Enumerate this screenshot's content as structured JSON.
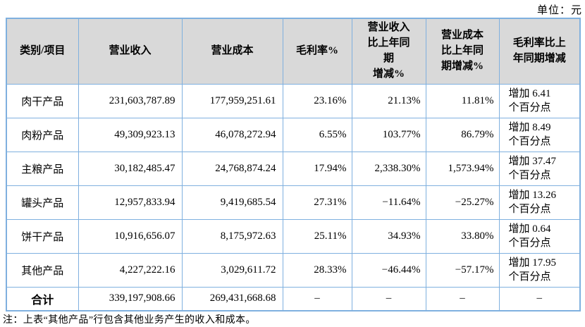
{
  "unit_label": "单位：元",
  "table": {
    "headers": [
      "类别/项目",
      "营业收入",
      "营业成本",
      "毛利率%",
      "营业收入\n比上年同\n期\n增减%",
      "营业成本\n比上年同\n期增减%",
      "毛利率比上\n年同期增减"
    ],
    "rows": [
      {
        "cells": [
          "肉干产品",
          "231,603,787.89",
          "177,959,251.61",
          "23.16%",
          "21.13%",
          "11.81%",
          "增加 6.41\n个百分点"
        ]
      },
      {
        "cells": [
          "肉粉产品",
          "49,309,923.13",
          "46,078,272.94",
          "6.55%",
          "103.77%",
          "86.79%",
          "增加 8.49\n个百分点"
        ]
      },
      {
        "cells": [
          "主粮产品",
          "30,182,485.47",
          "24,768,874.24",
          "17.94%",
          "2,338.30%",
          "1,573.94%",
          "增加 37.47\n个百分点"
        ]
      },
      {
        "cells": [
          "罐头产品",
          "12,957,833.94",
          "9,419,685.54",
          "27.31%",
          "−11.64%",
          "−25.27%",
          "增加 13.26\n个百分点"
        ]
      },
      {
        "cells": [
          "饼干产品",
          "10,916,656.07",
          "8,175,972.63",
          "25.11%",
          "34.93%",
          "33.80%",
          "增加 0.64\n个百分点"
        ]
      },
      {
        "cells": [
          "其他产品",
          "4,227,222.16",
          "3,029,611.72",
          "28.33%",
          "−46.44%",
          "−57.17%",
          "增加 17.95\n个百分点"
        ]
      },
      {
        "cells": [
          "合计",
          "339,197,908.66",
          "269,431,668.68",
          "–",
          "–",
          "–",
          "–"
        ]
      }
    ],
    "note": "注：上表“其他产品”行包含其他业务产生的收入和成本。"
  },
  "colors": {
    "grid_border": "#7fb0df",
    "highlight_border": "#3c7fc0",
    "header_background": "#d9d9d9",
    "text": "#000000"
  }
}
